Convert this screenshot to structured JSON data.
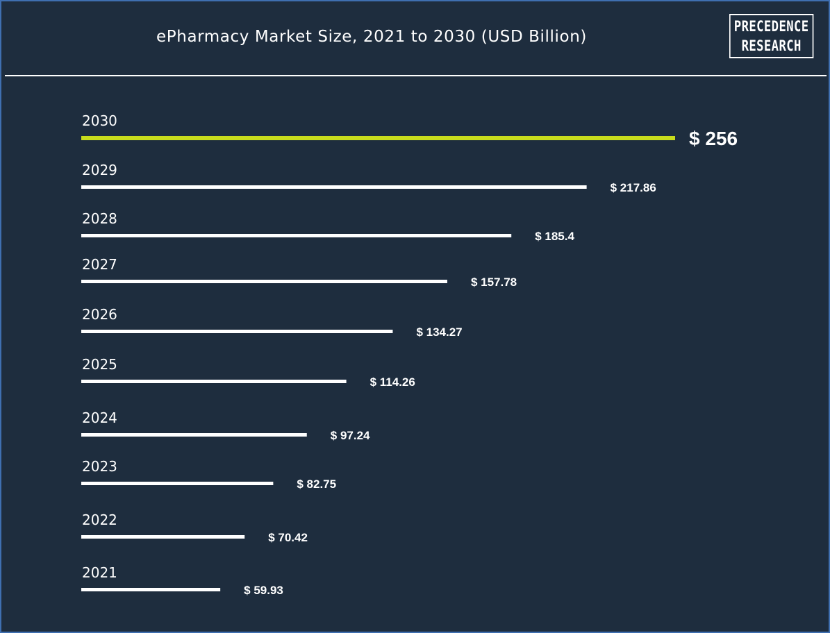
{
  "header": {
    "title": "ePharmacy Market Size, 2021 to 2030 (USD Billion)",
    "logo_line1": "PRECEDENCE",
    "logo_line2": "RESEARCH"
  },
  "colors": {
    "background": "#1e2d3e",
    "bar": "#ffffff",
    "highlight_bar": "#c8dc1c",
    "border": "#3f6fb0"
  },
  "chart_data": {
    "type": "bar",
    "orientation": "horizontal",
    "title": "ePharmacy Market Size, 2021 to 2030 (USD Billion)",
    "categories": [
      "2030",
      "2029",
      "2028",
      "2027",
      "2026",
      "2025",
      "2024",
      "2023",
      "2022",
      "2021"
    ],
    "values": [
      256,
      217.86,
      185.4,
      157.78,
      134.27,
      114.26,
      97.24,
      82.75,
      70.42,
      59.93
    ],
    "value_labels": [
      "$ 256",
      "$ 217.86",
      "$ 185.4",
      "$ 157.78",
      "$ 134.27",
      "$ 114.26",
      "$ 97.24",
      "$ 82.75",
      "$ 70.42",
      "$ 59.93"
    ],
    "highlight_category": "2030",
    "xlim": [
      0,
      256
    ],
    "grid": false,
    "legend": "none"
  }
}
